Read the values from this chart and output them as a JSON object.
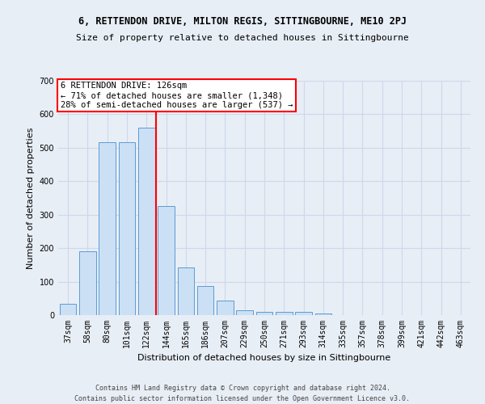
{
  "title": "6, RETTENDON DRIVE, MILTON REGIS, SITTINGBOURNE, ME10 2PJ",
  "subtitle": "Size of property relative to detached houses in Sittingbourne",
  "xlabel": "Distribution of detached houses by size in Sittingbourne",
  "ylabel": "Number of detached properties",
  "bar_labels": [
    "37sqm",
    "58sqm",
    "80sqm",
    "101sqm",
    "122sqm",
    "144sqm",
    "165sqm",
    "186sqm",
    "207sqm",
    "229sqm",
    "250sqm",
    "271sqm",
    "293sqm",
    "314sqm",
    "335sqm",
    "357sqm",
    "378sqm",
    "399sqm",
    "421sqm",
    "442sqm",
    "463sqm"
  ],
  "bar_values": [
    33,
    190,
    517,
    517,
    560,
    327,
    143,
    86,
    44,
    14,
    10,
    10,
    10,
    5,
    0,
    0,
    0,
    0,
    0,
    0,
    0
  ],
  "bar_color": "#cce0f5",
  "bar_edge_color": "#5b9bd5",
  "property_line_label": "6 RETTENDON DRIVE: 126sqm",
  "annotation_line1": "← 71% of detached houses are smaller (1,348)",
  "annotation_line2": "28% of semi-detached houses are larger (537) →",
  "annotation_box_color": "white",
  "annotation_box_edge": "red",
  "vline_color": "red",
  "vline_x_index": 4,
  "ylim": [
    0,
    700
  ],
  "yticks": [
    0,
    100,
    200,
    300,
    400,
    500,
    600,
    700
  ],
  "grid_color": "#cdd8ea",
  "background_color": "#e8eef6",
  "footer_line1": "Contains HM Land Registry data © Crown copyright and database right 2024.",
  "footer_line2": "Contains public sector information licensed under the Open Government Licence v3.0.",
  "title_fontsize": 8.5,
  "subtitle_fontsize": 8,
  "xlabel_fontsize": 8,
  "ylabel_fontsize": 8,
  "tick_fontsize": 7,
  "footer_fontsize": 6,
  "annotation_fontsize": 7.5
}
